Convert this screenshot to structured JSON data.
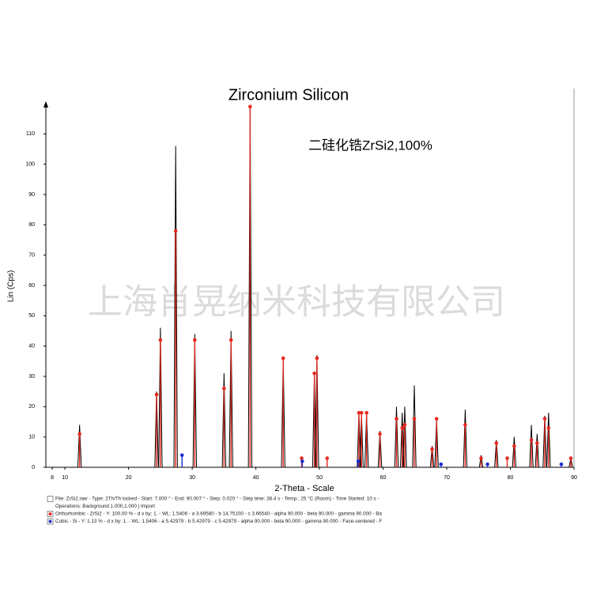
{
  "chart_data": {
    "type": "xrd",
    "title": "Zirconium Silicon",
    "annotation": "二硅化锆ZrSi2,100%",
    "watermark": "上海肖晃纳米科技有限公司",
    "xlabel": "2-Theta - Scale",
    "ylabel": "Lin (Cps)",
    "xlim": [
      7,
      90
    ],
    "ylim": [
      0,
      120
    ],
    "xticks": [
      8,
      10,
      20,
      30,
      40,
      50,
      60,
      70,
      80,
      90
    ],
    "yticks": [
      0,
      10,
      20,
      30,
      40,
      50,
      60,
      70,
      80,
      90,
      100,
      110
    ],
    "notes": [
      "Operations: Background 1.000,1.000 | Import"
    ],
    "series": [
      {
        "name": "File: ZrSi2.raw - Type: 2Th/Th locked - Start: 7.000 ° - End: 90.007 ° - Step: 0.020 ° - Step time: 38.4 s - Temp.: 25 °C (Room) - Time Started: 10 s -",
        "color": "#000000",
        "x": [
          12.3,
          24.4,
          25.0,
          27.4,
          30.4,
          35.0,
          36.1,
          39.1,
          44.3,
          49.2,
          49.6,
          56.2,
          56.6,
          57.4,
          59.5,
          62.1,
          63.0,
          63.4,
          64.9,
          67.7,
          68.4,
          72.9,
          75.4,
          77.8,
          80.6,
          83.3,
          84.2,
          85.4,
          86.0,
          89.5
        ],
        "values": [
          14,
          25,
          46,
          106,
          44,
          31,
          45,
          119,
          36,
          31,
          37,
          18,
          18,
          18,
          12,
          20,
          18,
          20,
          27,
          7,
          16,
          19,
          4,
          9,
          10,
          14,
          11,
          17,
          18,
          3
        ]
      },
      {
        "name": "Orthorhombic - ZrSi2 - Y: 100.00 % - d x by: 1. - WL: 1.5406 - a 3.69580 - b 14.75100 - c 3.66540 - alpha 90.000 - beta 90.000 - gamma 90.000 - Ba",
        "color": "#e8281e",
        "x": [
          12.3,
          24.4,
          25.0,
          27.4,
          30.4,
          35.0,
          36.1,
          39.1,
          44.3,
          47.2,
          49.2,
          49.6,
          51.2,
          56.2,
          56.6,
          57.4,
          59.5,
          62.1,
          63.0,
          63.4,
          64.9,
          67.7,
          68.4,
          72.9,
          75.4,
          77.8,
          79.5,
          80.6,
          83.3,
          84.2,
          85.4,
          86.0,
          89.5
        ],
        "values": [
          11,
          24,
          42,
          78,
          42,
          26,
          42,
          119,
          36,
          3,
          31,
          36,
          3,
          18,
          18,
          18,
          11,
          16,
          13,
          14,
          16,
          6,
          16,
          14,
          3,
          8,
          3,
          7,
          9,
          8,
          16,
          13,
          3
        ]
      },
      {
        "name": "Cubic - Si - Y: 1.13 % - d x by: 1. - WL: 1.5406 - a 5.42979 - b 5.42979 - c 5.42979 - alpha 90.000 - beta 90.000 - gamma 90.000 - Face-centered - F",
        "color": "#1f2fd0",
        "x": [
          28.4,
          47.3,
          56.1,
          69.1,
          76.4,
          88.0
        ],
        "values": [
          4,
          2,
          2,
          1,
          1,
          1
        ]
      }
    ]
  }
}
